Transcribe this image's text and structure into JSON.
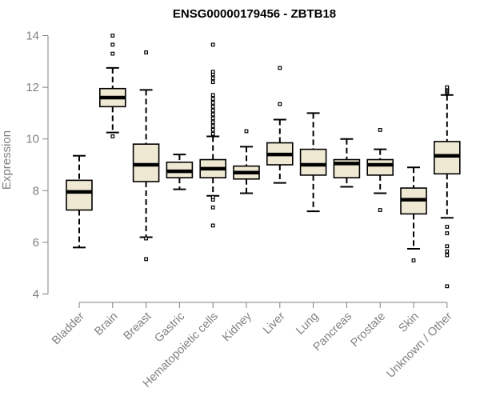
{
  "chart_data": {
    "type": "boxplot",
    "title": "ENSG00000179456 - ZBTB18",
    "xlabel": "",
    "ylabel": "Expression",
    "ylim": [
      4,
      14
    ],
    "yticks": [
      4,
      6,
      8,
      10,
      12,
      14
    ],
    "grid": false,
    "categories": [
      "Bladder",
      "Brain",
      "Breast",
      "Gastric",
      "Hematopoietic cells",
      "Kidney",
      "Liver",
      "Lung",
      "Pancreas",
      "Prostate",
      "Skin",
      "Unknown / Other"
    ],
    "boxes": [
      {
        "category": "Bladder",
        "whisker_low": 5.8,
        "q1": 7.25,
        "median": 7.95,
        "q3": 8.4,
        "whisker_high": 9.35,
        "outliers": []
      },
      {
        "category": "Brain",
        "whisker_low": 10.25,
        "q1": 11.25,
        "median": 11.6,
        "q3": 11.95,
        "whisker_high": 12.75,
        "outliers": [
          10.1,
          13.3,
          13.65,
          14.0
        ]
      },
      {
        "category": "Breast",
        "whisker_low": 6.2,
        "q1": 8.35,
        "median": 9.0,
        "q3": 9.8,
        "whisker_high": 11.9,
        "outliers": [
          5.35,
          6.15,
          13.35
        ]
      },
      {
        "category": "Gastric",
        "whisker_low": 8.05,
        "q1": 8.5,
        "median": 8.75,
        "q3": 9.1,
        "whisker_high": 9.4,
        "outliers": []
      },
      {
        "category": "Hematopoietic cells",
        "whisker_low": 7.8,
        "q1": 8.5,
        "median": 8.85,
        "q3": 9.2,
        "whisker_high": 10.1,
        "outliers": [
          6.65,
          7.35,
          7.65,
          7.75,
          10.2,
          10.35,
          10.5,
          10.65,
          10.8,
          10.95,
          11.1,
          11.25,
          11.4,
          11.55,
          11.7,
          12.2,
          12.35,
          12.5,
          12.6,
          13.65
        ]
      },
      {
        "category": "Kidney",
        "whisker_low": 7.9,
        "q1": 8.45,
        "median": 8.7,
        "q3": 8.95,
        "whisker_high": 9.7,
        "outliers": [
          10.3
        ]
      },
      {
        "category": "Liver",
        "whisker_low": 8.3,
        "q1": 9.0,
        "median": 9.4,
        "q3": 9.85,
        "whisker_high": 10.75,
        "outliers": [
          11.35,
          12.75
        ]
      },
      {
        "category": "Lung",
        "whisker_low": 7.2,
        "q1": 8.6,
        "median": 9.0,
        "q3": 9.6,
        "whisker_high": 11.0,
        "outliers": []
      },
      {
        "category": "Pancreas",
        "whisker_low": 8.15,
        "q1": 8.5,
        "median": 9.05,
        "q3": 9.2,
        "whisker_high": 10.0,
        "outliers": []
      },
      {
        "category": "Prostate",
        "whisker_low": 7.9,
        "q1": 8.6,
        "median": 9.0,
        "q3": 9.2,
        "whisker_high": 9.6,
        "outliers": [
          7.25,
          10.35
        ]
      },
      {
        "category": "Skin",
        "whisker_low": 5.75,
        "q1": 7.1,
        "median": 7.65,
        "q3": 8.1,
        "whisker_high": 8.9,
        "outliers": [
          5.3
        ]
      },
      {
        "category": "Unknown / Other",
        "whisker_low": 6.95,
        "q1": 8.65,
        "median": 9.35,
        "q3": 9.9,
        "whisker_high": 11.7,
        "outliers": [
          4.3,
          5.5,
          5.65,
          5.85,
          6.35,
          6.6,
          11.8,
          11.85,
          11.9,
          11.95,
          12.0
        ]
      }
    ],
    "box_fill": "#efe9d3",
    "box_stroke": "#000000",
    "axis_color": "#808080",
    "text_color": "#808080"
  }
}
